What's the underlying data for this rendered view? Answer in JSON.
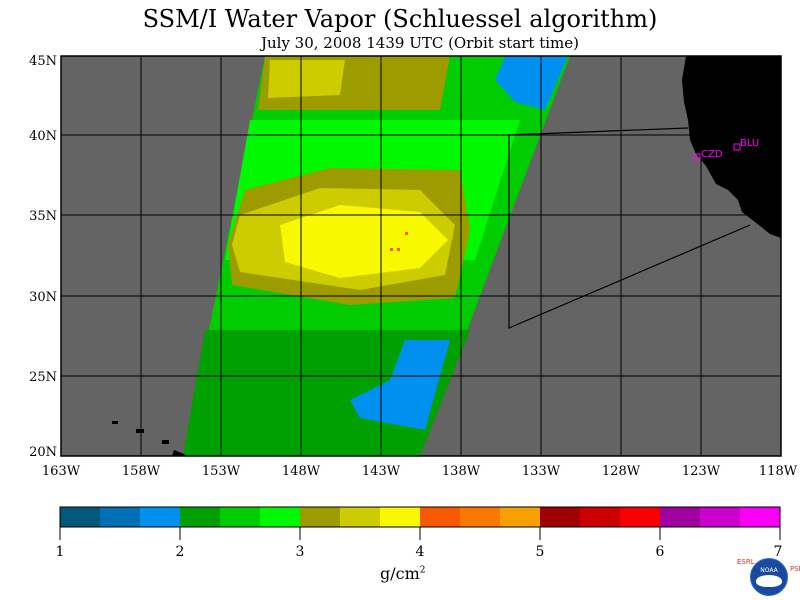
{
  "title": "SSM/I Water Vapor (Schluessel algorithm)",
  "subtitle": "July 30, 2008  1439 UTC  (Orbit start time)",
  "map": {
    "lat_labels": [
      "45N",
      "40N",
      "35N",
      "30N",
      "25N",
      "20N"
    ],
    "lon_labels": [
      "163W",
      "158W",
      "153W",
      "148W",
      "143W",
      "138W",
      "133W",
      "128W",
      "123W",
      "118W"
    ],
    "stations": [
      {
        "label": "CZD"
      },
      {
        "label": "BLU"
      }
    ],
    "colors": {
      "no_data": "#646464",
      "land": "#000000",
      "grid": "#000000",
      "station": "#ff00ff"
    }
  },
  "colorbar": {
    "tick_labels": [
      "1",
      "2",
      "3",
      "4",
      "5",
      "6",
      "7"
    ],
    "unit": "g/cm",
    "unit_exponent": "2",
    "colors": [
      "#00587a",
      "#0070b4",
      "#0090f0",
      "#00a000",
      "#00cc00",
      "#00f800",
      "#9c9c00",
      "#cccc00",
      "#f8f800",
      "#f85800",
      "#f87800",
      "#f8a000",
      "#a00000",
      "#cc0000",
      "#f80000",
      "#a000a0",
      "#cc00cc",
      "#f800f8"
    ]
  },
  "logo": {
    "left_letters": "ESRL",
    "right_letters": "PSD",
    "badge": "NOAA"
  }
}
